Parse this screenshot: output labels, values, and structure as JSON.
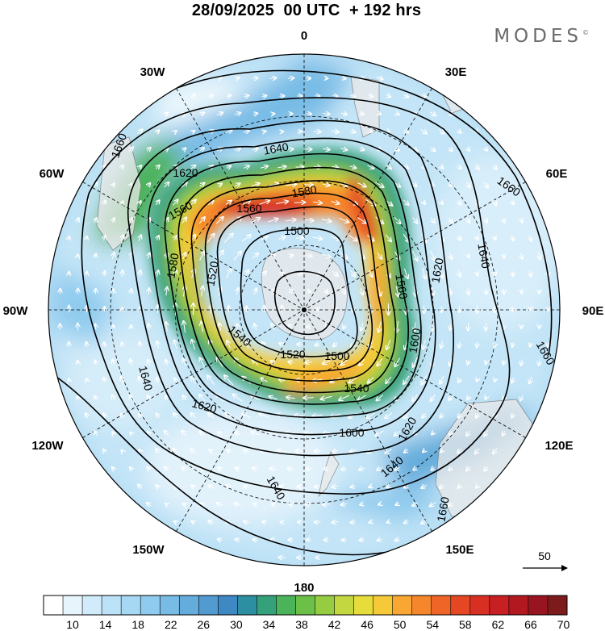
{
  "header": {
    "title": "28/09/2025  00 UTC  + 192 hrs",
    "brand": "MODES",
    "brand_mark": "©"
  },
  "map": {
    "projection": "south polar stereographic",
    "longitude_labels": [
      "0",
      "30E",
      "60E",
      "90E",
      "120E",
      "150E",
      "180",
      "150W",
      "120W",
      "90W",
      "60W",
      "30W"
    ],
    "contour_labels": [
      "1500",
      "1520",
      "1540",
      "1560",
      "1580",
      "1600",
      "1620",
      "1640",
      "1660"
    ],
    "contour_line_color": "#000000",
    "wind_arrow_color": "#ffffff"
  },
  "legend": {
    "vector_reference": "50",
    "colorbar_ticks": [
      "10",
      "14",
      "18",
      "22",
      "26",
      "30",
      "34",
      "38",
      "42",
      "46",
      "50",
      "54",
      "58",
      "62",
      "66",
      "70"
    ],
    "colorbar_colors": [
      "#ffffff",
      "#e7f4fc",
      "#d1ebfa",
      "#bce2f8",
      "#a6d8f4",
      "#8fcbee",
      "#78bce6",
      "#64acdc",
      "#529bd0",
      "#3e88c3",
      "#2c8fa2",
      "#35a17a",
      "#4bb35a",
      "#6cc048",
      "#96cc42",
      "#c2d740",
      "#e6dc3c",
      "#f6c938",
      "#f8a732",
      "#f5862c",
      "#ef6528",
      "#e54725",
      "#d82f23",
      "#c71f22",
      "#b11820",
      "#971420",
      "#7c1a1c"
    ]
  }
}
